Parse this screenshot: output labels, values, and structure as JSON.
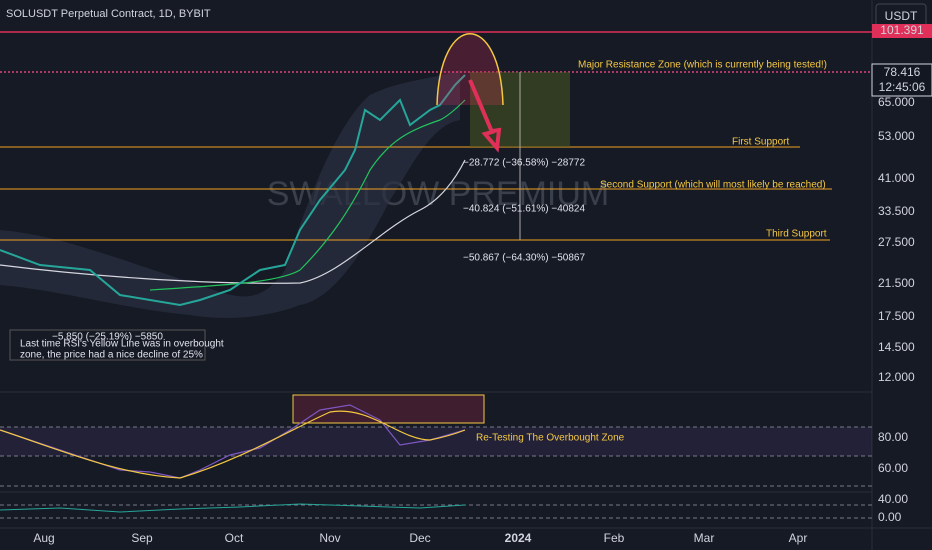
{
  "header": {
    "title": "SOLUSDT Perpetual Contract, 1D, BYBIT",
    "currency": "USDT"
  },
  "price_axis": {
    "labels": [
      "65.000",
      "53.000",
      "41.000",
      "33.500",
      "27.500",
      "21.500",
      "17.500",
      "14.500",
      "12.000"
    ],
    "resistance_label": "101.391",
    "last_price": "78.416",
    "countdown": "12:45:06"
  },
  "rsi_axis": {
    "labels": [
      "80.00",
      "60.00",
      "40.00"
    ]
  },
  "lower_axis": {
    "labels": [
      "0.00"
    ]
  },
  "time_axis": {
    "labels": [
      "Aug",
      "Sep",
      "Oct",
      "Nov",
      "Dec",
      "2024",
      "Feb",
      "Mar",
      "Apr"
    ]
  },
  "watermark": "SWALLOW PREMIUM",
  "annotations": {
    "resistance": "Major Resistance Zone (which is currently being tested!)",
    "first_support": "First Support",
    "second_support": "Second Support (which will most likely be reached)",
    "third_support": "Third Support",
    "measure_1": "−28.772 (−36.58%) −28772",
    "measure_2": "−40.824 (−51.61%) −40824",
    "measure_3": "−50.867 (−64.30%) −50867",
    "past_measure": "−5.850 (−25.19%) −5850",
    "past_note": [
      "Last time RSI's Yellow Line was in overbought",
      "zone, the price had a nice decline of 25%"
    ],
    "rsi_note": "Re-Testing The Overbought Zone"
  }
}
